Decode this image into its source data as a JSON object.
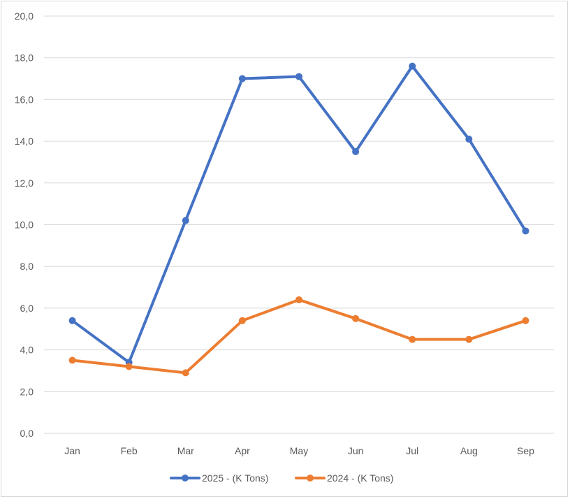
{
  "chart_data": {
    "type": "line",
    "title": "",
    "xlabel": "",
    "ylabel": "",
    "categories": [
      "Jan",
      "Feb",
      "Mar",
      "Apr",
      "May",
      "Jun",
      "Jul",
      "Aug",
      "Sep"
    ],
    "ylim": [
      0,
      20
    ],
    "yticks": [
      "0,0",
      "2,0",
      "4,0",
      "6,0",
      "8,0",
      "10,0",
      "12,0",
      "14,0",
      "16,0",
      "18,0",
      "20,0"
    ],
    "grid": true,
    "legend_position": "bottom",
    "series": [
      {
        "name": "2025 - (K Tons)",
        "color": "#4472c4",
        "values": [
          5.4,
          3.4,
          10.2,
          17.0,
          17.1,
          13.5,
          17.6,
          14.1,
          9.7
        ]
      },
      {
        "name": "2024 - (K Tons)",
        "color": "#ed7d31",
        "values": [
          3.5,
          3.2,
          2.9,
          5.4,
          6.4,
          5.5,
          4.5,
          4.5,
          5.4
        ]
      }
    ]
  }
}
